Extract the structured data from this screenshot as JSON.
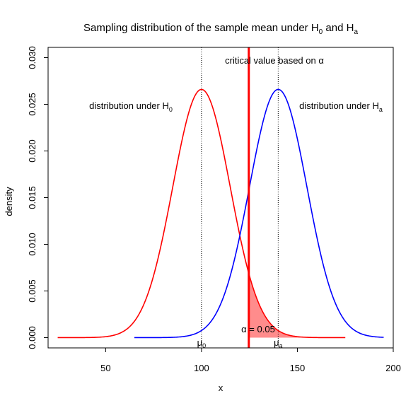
{
  "chart_data": {
    "type": "line",
    "title": {
      "main": "Sampling distribution of the sample mean under H",
      "sub0": "0",
      "mid": " and H",
      "sub1": "a"
    },
    "xlabel": "x",
    "ylabel": "density",
    "xlim": [
      20,
      200
    ],
    "ylim": [
      -0.0011,
      0.0311
    ],
    "x_ticks": [
      50,
      100,
      150,
      200
    ],
    "x_tick_labels": [
      "50",
      "100",
      "150",
      "200"
    ],
    "y_ticks": [
      0.0,
      0.005,
      0.01,
      0.015,
      0.02,
      0.025,
      0.03
    ],
    "y_tick_labels": [
      "0.000",
      "0.005",
      "0.010",
      "0.015",
      "0.020",
      "0.025",
      "0.030"
    ],
    "grid": false,
    "series": [
      {
        "name": "distribution under H0",
        "color": "#ff0000",
        "mean": 100,
        "sd": 15,
        "x_range": [
          25,
          175
        ]
      },
      {
        "name": "distribution under Ha",
        "color": "#0000ff",
        "mean": 140,
        "sd": 15,
        "x_range": [
          65,
          195
        ]
      }
    ],
    "mu_lines": [
      {
        "x": 100,
        "label": "μ",
        "sub": "0"
      },
      {
        "x": 140,
        "label": "μ",
        "sub": "a"
      }
    ],
    "critical_value": {
      "x": 124.67,
      "color": "#ff0000"
    },
    "shaded_region": {
      "from": 124.67,
      "to": 175,
      "series": "distribution under H0",
      "color": "#ff0000",
      "opacity": 0.45
    },
    "annotations": {
      "dist_h0": {
        "text": "distribution under H",
        "sub": "0"
      },
      "dist_ha": {
        "text": "distribution under H",
        "sub": "a"
      },
      "critical": {
        "text": "critical value based on ",
        "greek": "α"
      },
      "alpha": {
        "greek": "α",
        "text": " = 0.05"
      }
    }
  }
}
